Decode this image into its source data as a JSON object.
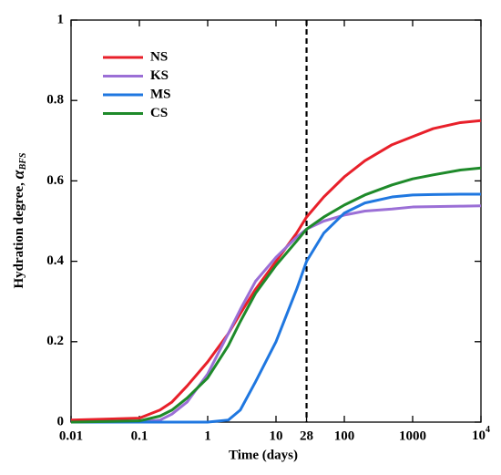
{
  "chart_data": {
    "type": "line",
    "x_label": "Time (days)",
    "y_label": {
      "text": "Hydration degree, ",
      "symbol": "α",
      "subscript": "BFS"
    },
    "x_log": true,
    "xlim": [
      0.01,
      10000
    ],
    "xticks": [
      0.01,
      0.1,
      1,
      10,
      28,
      100,
      1000,
      {
        "value": 10000,
        "label": "10",
        "superscript": "4"
      }
    ],
    "ylim": [
      0,
      1
    ],
    "yticks": [
      0,
      0.2,
      0.4,
      0.6,
      0.8,
      1
    ],
    "vline_x": 28,
    "legend": "upper left",
    "x": [
      0.01,
      0.1,
      0.2,
      0.3,
      0.5,
      1,
      2,
      3,
      5,
      10,
      20,
      28,
      50,
      100,
      200,
      500,
      1000,
      2000,
      5000,
      10000
    ],
    "series": [
      {
        "name": "NS",
        "color": "#e8202a",
        "values": [
          0.005,
          0.01,
          0.03,
          0.05,
          0.09,
          0.15,
          0.22,
          0.27,
          0.33,
          0.4,
          0.47,
          0.51,
          0.56,
          0.61,
          0.65,
          0.69,
          0.71,
          0.73,
          0.745,
          0.75
        ]
      },
      {
        "name": "KS",
        "color": "#9b6fd6",
        "values": [
          0,
          0,
          0.005,
          0.02,
          0.05,
          0.12,
          0.22,
          0.28,
          0.35,
          0.41,
          0.46,
          0.48,
          0.5,
          0.515,
          0.525,
          0.53,
          0.535,
          0.536,
          0.537,
          0.538
        ]
      },
      {
        "name": "MS",
        "color": "#1f77e0",
        "values": [
          0,
          0,
          0,
          0,
          0,
          0,
          0.005,
          0.03,
          0.1,
          0.2,
          0.33,
          0.4,
          0.47,
          0.52,
          0.545,
          0.56,
          0.565,
          0.566,
          0.567,
          0.567
        ]
      },
      {
        "name": "CS",
        "color": "#1e8a2a",
        "values": [
          0,
          0.003,
          0.015,
          0.03,
          0.06,
          0.11,
          0.19,
          0.25,
          0.32,
          0.39,
          0.45,
          0.48,
          0.51,
          0.54,
          0.565,
          0.59,
          0.605,
          0.615,
          0.627,
          0.632
        ]
      }
    ]
  }
}
